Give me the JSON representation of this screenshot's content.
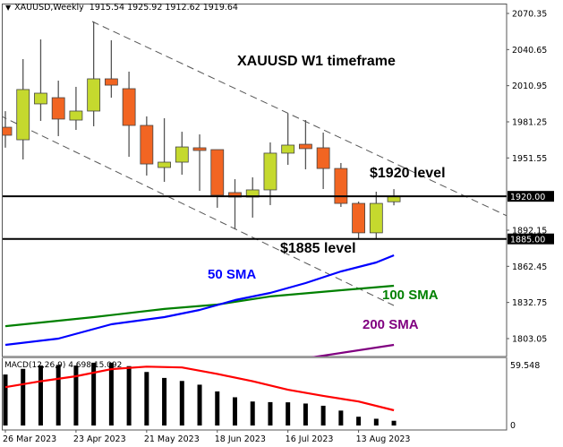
{
  "header": {
    "symbol_timeframe": "XAUUSD,Weekly",
    "ohlc": "1915.54 1925.92 1912.62 1919.64"
  },
  "annotations": {
    "title": "XAUUSD W1 timeframe",
    "level_1920": "$1920 level",
    "level_1885": "$1885 level",
    "sma50": "50 SMA",
    "sma100": "100 SMA",
    "sma200": "200 SMA"
  },
  "colors": {
    "bull": "#c5d92e",
    "bear": "#f26522",
    "sma50": "#0000ff",
    "sma100": "#008000",
    "sma200": "#800080",
    "signal": "#ff0000",
    "histogram": "#000000"
  },
  "price_axis": [
    "2070.35",
    "2040.65",
    "2010.95",
    "1981.25",
    "1951.55",
    "1892.15",
    "1862.45",
    "1832.75",
    "1803.05"
  ],
  "horizontal_levels": [
    {
      "value": 1920.0,
      "label": "1920.00"
    },
    {
      "value": 1885.0,
      "label": "1885.00"
    }
  ],
  "macd": {
    "label": "MACD(12,26,9) 4.698 15.092",
    "axis": [
      "59.548",
      "0"
    ],
    "histogram": [
      50.6,
      56.2,
      59.5,
      60.1,
      59.5,
      62.3,
      62.3,
      58.9,
      53.1,
      47.2,
      44.2,
      40.5,
      33.8,
      28.0,
      23.8,
      23.2,
      23.0,
      21.8,
      19.6,
      14.8,
      8.7,
      6.7,
      4.698
    ],
    "signal": [
      [
        0,
        38.0
      ],
      [
        2,
        43.9
      ],
      [
        4,
        48.9
      ],
      [
        6,
        55.9
      ],
      [
        8,
        58.4
      ],
      [
        10,
        57.6
      ],
      [
        12,
        51.2
      ],
      [
        14,
        43.9
      ],
      [
        16,
        35.5
      ],
      [
        18,
        29.4
      ],
      [
        20,
        23.8
      ],
      [
        22,
        15.092
      ]
    ]
  },
  "time_axis": [
    {
      "index": 0,
      "label": "26 Mar 2023"
    },
    {
      "index": 4,
      "label": "23 Apr 2023"
    },
    {
      "index": 8,
      "label": "21 May 2023"
    },
    {
      "index": 12,
      "label": "18 Jun 2023"
    },
    {
      "index": 16,
      "label": "16 Jul 2023"
    },
    {
      "index": 20,
      "label": "13 Aug 2023"
    }
  ],
  "chart_data": {
    "type": "candlestick",
    "ohlc": [
      [
        1976.8,
        1990.0,
        1960.0,
        1970.2
      ],
      [
        1966.5,
        2032.8,
        1950.3,
        2007.8
      ],
      [
        1996.0,
        2049.0,
        1982.0,
        2004.8
      ],
      [
        2001.1,
        2015.1,
        1969.5,
        1983.5
      ],
      [
        1982.7,
        2010.0,
        1974.6,
        1990.1
      ],
      [
        1990.1,
        2063.7,
        1977.6,
        2016.6
      ],
      [
        2016.6,
        2048.3,
        2001.1,
        2011.4
      ],
      [
        2008.5,
        2022.5,
        1952.5,
        1978.3
      ],
      [
        1978.3,
        1985.7,
        1937.1,
        1946.6
      ],
      [
        1943.7,
        1984.2,
        1931.9,
        1948.1
      ],
      [
        1948.1,
        1973.1,
        1937.8,
        1960.6
      ],
      [
        1959.9,
        1970.9,
        1924.5,
        1957.7
      ],
      [
        1958.4,
        1958.4,
        1910.6,
        1920.9
      ],
      [
        1923.1,
        1934.1,
        1892.9,
        1919.4
      ],
      [
        1919.4,
        1935.6,
        1902.5,
        1925.3
      ],
      [
        1925.3,
        1964.3,
        1912.8,
        1955.5
      ],
      [
        1955.5,
        1987.9,
        1945.9,
        1962.1
      ],
      [
        1962.8,
        1982.7,
        1942.2,
        1959.2
      ],
      [
        1959.9,
        1972.4,
        1926.0,
        1942.9
      ],
      [
        1942.9,
        1947.4,
        1911.3,
        1914.2
      ],
      [
        1914.2,
        1915.7,
        1885.5,
        1890.0
      ],
      [
        1890.0,
        1923.8,
        1885.5,
        1914.2
      ],
      [
        1915.54,
        1925.92,
        1912.62,
        1919.64
      ]
    ],
    "sma50": [
      [
        0,
        1797.9
      ],
      [
        3,
        1803.0
      ],
      [
        6,
        1814.8
      ],
      [
        9,
        1820.7
      ],
      [
        11,
        1826.6
      ],
      [
        13,
        1834.7
      ],
      [
        15,
        1840.6
      ],
      [
        17,
        1848.7
      ],
      [
        19,
        1858.3
      ],
      [
        21,
        1865.6
      ],
      [
        22,
        1871.5
      ]
    ],
    "sma100": [
      [
        0,
        1813.3
      ],
      [
        5,
        1820.7
      ],
      [
        9,
        1827.4
      ],
      [
        12,
        1831.0
      ],
      [
        15,
        1837.7
      ],
      [
        19,
        1842.8
      ],
      [
        22,
        1846.5
      ]
    ],
    "sma200": [
      [
        14,
        1780.2
      ],
      [
        22,
        1797.9
      ]
    ],
    "ylim": [
      1790,
      2075
    ]
  }
}
